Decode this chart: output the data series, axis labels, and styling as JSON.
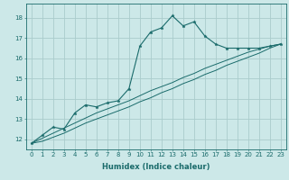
{
  "xlabel": "Humidex (Indice chaleur)",
  "ylabel": "",
  "bg_color": "#cce8e8",
  "grid_color": "#aacccc",
  "line_color": "#1a6b6b",
  "x_values": [
    0,
    1,
    2,
    3,
    4,
    5,
    6,
    7,
    8,
    9,
    10,
    11,
    12,
    13,
    14,
    15,
    16,
    17,
    18,
    19,
    20,
    21,
    22,
    23
  ],
  "series1": [
    11.8,
    12.2,
    12.6,
    12.5,
    13.3,
    13.7,
    13.6,
    13.8,
    13.9,
    14.5,
    16.6,
    17.3,
    17.5,
    18.1,
    17.6,
    17.8,
    17.1,
    16.7,
    16.5,
    16.5,
    16.5,
    16.5,
    16.6,
    16.7
  ],
  "series2": [
    11.8,
    12.05,
    12.3,
    12.55,
    12.8,
    13.05,
    13.3,
    13.5,
    13.7,
    13.9,
    14.15,
    14.4,
    14.6,
    14.8,
    15.05,
    15.25,
    15.5,
    15.7,
    15.9,
    16.1,
    16.3,
    16.45,
    16.6,
    16.7
  ],
  "series3": [
    11.8,
    11.9,
    12.1,
    12.3,
    12.55,
    12.8,
    13.0,
    13.2,
    13.4,
    13.6,
    13.85,
    14.05,
    14.3,
    14.5,
    14.75,
    14.95,
    15.2,
    15.4,
    15.65,
    15.85,
    16.05,
    16.25,
    16.5,
    16.7
  ],
  "ylim": [
    11.5,
    18.7
  ],
  "yticks": [
    12,
    13,
    14,
    15,
    16,
    17,
    18
  ],
  "xticks": [
    0,
    1,
    2,
    3,
    4,
    5,
    6,
    7,
    8,
    9,
    10,
    11,
    12,
    13,
    14,
    15,
    16,
    17,
    18,
    19,
    20,
    21,
    22,
    23
  ],
  "xlabel_fontsize": 6,
  "tick_fontsize": 5
}
